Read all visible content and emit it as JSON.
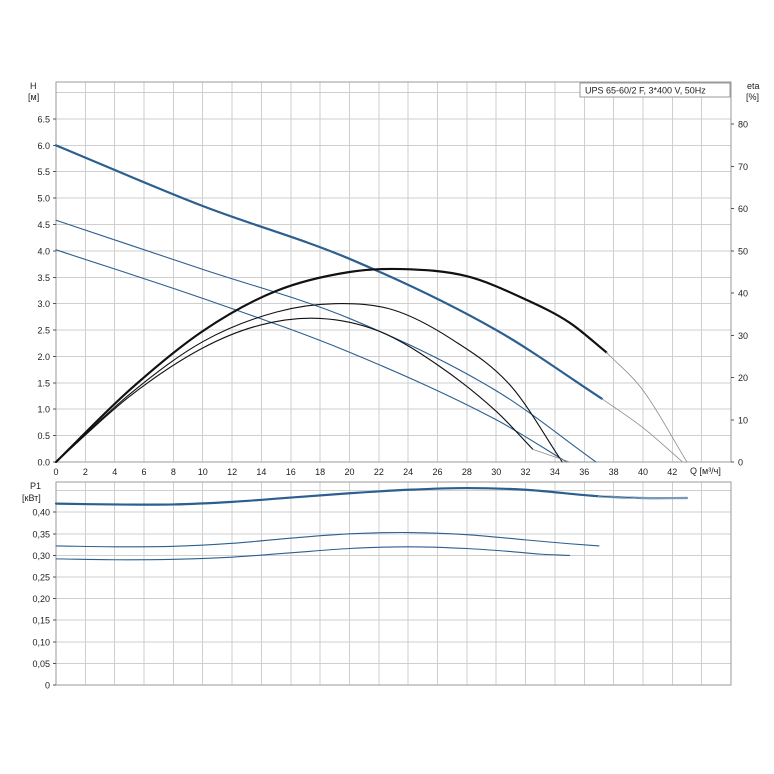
{
  "chart_data": [
    {
      "type": "line",
      "panel": "head",
      "title": "UPS 65-60/2 F, 3*400 V, 50Hz",
      "y_label": "H",
      "y_unit": "[м]",
      "y2_label": "eta",
      "y2_unit": "[%]",
      "x_label": "Q [м³/ч]",
      "xlim": [
        0,
        46
      ],
      "ylim": [
        0,
        7.2
      ],
      "y2lim": [
        0,
        90
      ],
      "x_ticks": [
        "0",
        "2",
        "4",
        "6",
        "8",
        "10",
        "12",
        "14",
        "16",
        "18",
        "20",
        "22",
        "24",
        "26",
        "28",
        "30",
        "32",
        "34",
        "36",
        "38",
        "40",
        "42"
      ],
      "y_ticks": [
        "0.0",
        "0.5",
        "1.0",
        "1.5",
        "2.0",
        "2.5",
        "3.0",
        "3.5",
        "4.0",
        "4.5",
        "5.0",
        "5.5",
        "6.0",
        "6.5"
      ],
      "y2_ticks": [
        "0",
        "10",
        "20",
        "30",
        "40",
        "50",
        "60",
        "70",
        "80"
      ],
      "grid": true,
      "series": [
        {
          "name": "",
          "kind": "head",
          "color": "#2c5f8f",
          "x": [
            0,
            10,
            20,
            30,
            37.2
          ],
          "y": [
            6.0,
            4.85,
            3.85,
            2.5,
            1.2
          ],
          "style": "bold"
        },
        {
          "name": "",
          "kind": "head",
          "color": "#2c5f8f",
          "x": [
            0,
            10,
            20,
            30,
            36.8
          ],
          "y": [
            4.58,
            3.65,
            2.72,
            1.35,
            0.0
          ],
          "style": "normal"
        },
        {
          "name": "",
          "kind": "head",
          "color": "#2c5f8f",
          "x": [
            0,
            10,
            20,
            30,
            34.8
          ],
          "y": [
            4.02,
            3.1,
            2.08,
            0.8,
            0.0
          ],
          "style": "normal"
        },
        {
          "name": "",
          "kind": "head-extension",
          "color": "#8c8c8c",
          "x": [
            37.2,
            40,
            42.7
          ],
          "y": [
            1.2,
            0.65,
            0.0
          ],
          "style": "thin"
        },
        {
          "name": "",
          "kind": "efficiency",
          "color": "#111111",
          "x": [
            0,
            5,
            10,
            15,
            20,
            23.5,
            28,
            32,
            35,
            37.5
          ],
          "y": [
            0,
            17,
            31,
            40.5,
            45,
            45.7,
            44,
            38.5,
            33,
            26
          ],
          "style": "bold"
        },
        {
          "name": "",
          "kind": "efficiency",
          "color": "#111111",
          "x": [
            0,
            5,
            10,
            15,
            19,
            23,
            27,
            31,
            34.5
          ],
          "y": [
            0,
            16,
            28.5,
            35.5,
            37.5,
            36,
            29,
            18,
            0
          ],
          "style": "normal"
        },
        {
          "name": "",
          "kind": "efficiency",
          "color": "#111111",
          "x": [
            0,
            5,
            10,
            14,
            18,
            22,
            26,
            30,
            32.5
          ],
          "y": [
            0,
            15.5,
            27,
            32.5,
            34,
            31,
            23,
            12,
            3
          ],
          "style": "normal"
        },
        {
          "name": "",
          "kind": "efficiency-extension",
          "color": "#8c8c8c",
          "x": [
            37.5,
            40,
            43
          ],
          "y": [
            26,
            17,
            0
          ],
          "style": "thin"
        },
        {
          "name": "",
          "kind": "efficiency-extension",
          "color": "#8c8c8c",
          "x": [
            34.5,
            37
          ],
          "y": [
            0,
            0
          ],
          "style": "thin"
        },
        {
          "name": "",
          "kind": "efficiency-extension",
          "color": "#8c8c8c",
          "x": [
            32.5,
            35
          ],
          "y": [
            3,
            0
          ],
          "style": "thin"
        }
      ]
    },
    {
      "type": "line",
      "panel": "power",
      "y_label": "P1",
      "y_unit": "[кВт]",
      "xlim": [
        0,
        46
      ],
      "ylim": [
        0,
        0.47
      ],
      "y_ticks": [
        "0",
        "0,05",
        "0,10",
        "0,15",
        "0,20",
        "0,25",
        "0,30",
        "0,35",
        "0,40"
      ],
      "grid": true,
      "series": [
        {
          "name": "",
          "color": "#2c5f8f",
          "x": [
            0,
            4,
            8,
            12,
            16,
            20,
            24,
            28,
            32,
            37,
            40,
            43
          ],
          "y": [
            0.42,
            0.418,
            0.418,
            0.424,
            0.434,
            0.444,
            0.452,
            0.456,
            0.452,
            0.437,
            0.433,
            0.433
          ],
          "style": "bold"
        },
        {
          "name": "",
          "color": "#2c5f8f",
          "x": [
            0,
            4,
            8,
            12,
            16,
            20,
            24,
            28,
            32,
            35,
            37
          ],
          "y": [
            0.322,
            0.32,
            0.321,
            0.328,
            0.34,
            0.35,
            0.353,
            0.348,
            0.336,
            0.327,
            0.322
          ],
          "style": "normal"
        },
        {
          "name": "",
          "color": "#2c5f8f",
          "x": [
            0,
            4,
            8,
            12,
            16,
            20,
            24,
            28,
            31,
            33,
            35
          ],
          "y": [
            0.292,
            0.29,
            0.291,
            0.296,
            0.306,
            0.316,
            0.32,
            0.316,
            0.309,
            0.303,
            0.3
          ],
          "style": "normal"
        }
      ]
    }
  ]
}
